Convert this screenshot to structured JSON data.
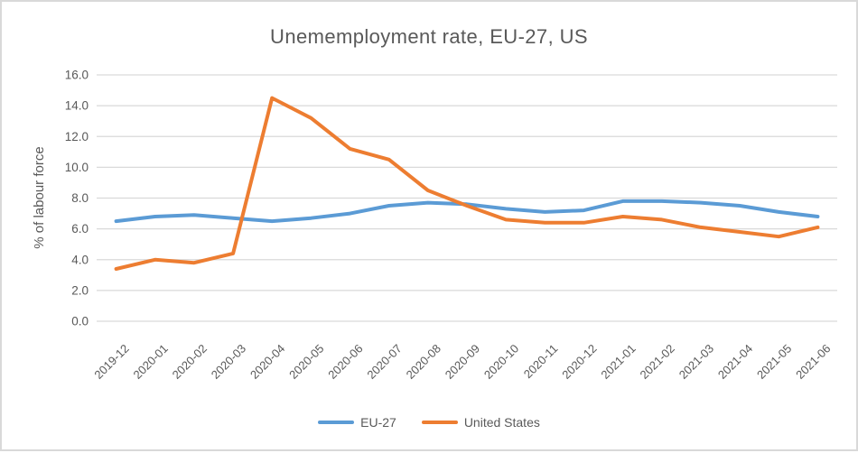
{
  "chart_data": {
    "type": "line",
    "title": "Unememployment rate, EU-27, US",
    "xlabel": "",
    "ylabel": "% of labour force",
    "ylim": [
      0,
      16
    ],
    "y_ticks": [
      "0.0",
      "2.0",
      "4.0",
      "6.0",
      "8.0",
      "10.0",
      "12.0",
      "14.0",
      "16.0"
    ],
    "grid": true,
    "legend_position": "bottom-center",
    "categories": [
      "2019-12",
      "2020-01",
      "2020-02",
      "2020-03",
      "2020-04",
      "2020-05",
      "2020-06",
      "2020-07",
      "2020-08",
      "2020-09",
      "2020-10",
      "2020-11",
      "2020-12",
      "2021-01",
      "2021-02",
      "2021-03",
      "2021-04",
      "2021-05",
      "2021-06"
    ],
    "series": [
      {
        "name": "EU-27",
        "color": "#5B9BD5",
        "values": [
          6.5,
          6.8,
          6.9,
          6.7,
          6.5,
          6.7,
          7.0,
          7.5,
          7.7,
          7.6,
          7.3,
          7.1,
          7.2,
          7.8,
          7.8,
          7.7,
          7.5,
          7.1,
          6.8
        ]
      },
      {
        "name": "United States",
        "color": "#ED7D31",
        "values": [
          3.4,
          4.0,
          3.8,
          4.4,
          14.5,
          13.2,
          11.2,
          10.5,
          8.5,
          7.5,
          6.6,
          6.4,
          6.4,
          6.8,
          6.6,
          6.1,
          5.8,
          5.5,
          6.1
        ]
      }
    ]
  },
  "colors": {
    "gridline": "#D9D9D9",
    "axis_text": "#595959",
    "title_text": "#595959",
    "frame_border": "#D9D9D9",
    "background": "#FFFFFF"
  }
}
